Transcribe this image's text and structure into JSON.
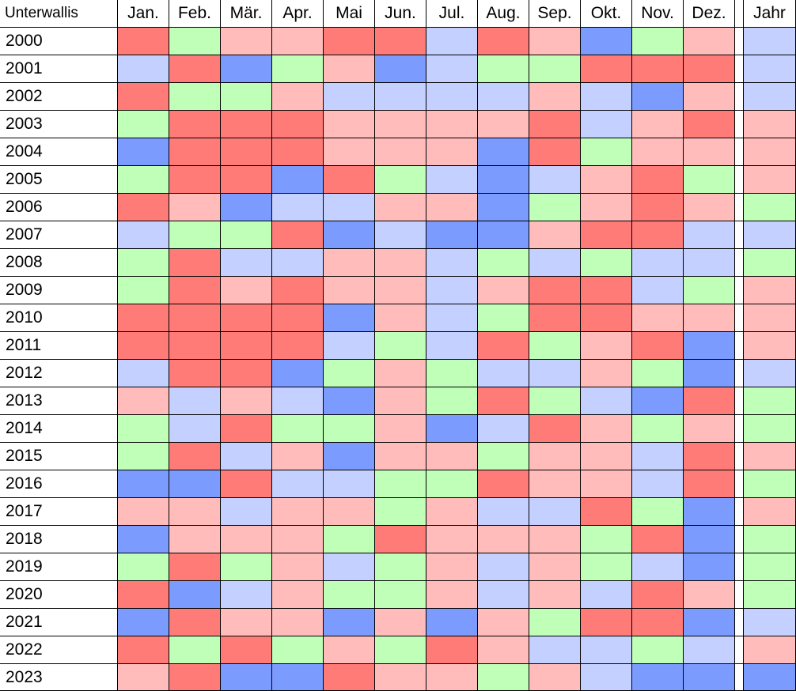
{
  "chart_data": {
    "type": "heatmap",
    "title": "Unterwallis",
    "columns": [
      "Jan.",
      "Feb.",
      "Mär.",
      "Apr.",
      "Mai",
      "Jun.",
      "Jul.",
      "Aug.",
      "Sep.",
      "Okt.",
      "Nov.",
      "Dez."
    ],
    "annual_label": "Jahr",
    "rows": [
      "2000",
      "2001",
      "2002",
      "2003",
      "2004",
      "2005",
      "2006",
      "2007",
      "2008",
      "2009",
      "2010",
      "2011",
      "2012",
      "2013",
      "2014",
      "2015",
      "2016",
      "2017",
      "2018",
      "2019",
      "2020",
      "2021",
      "2022",
      "2023"
    ],
    "category_colors": {
      "DR": "#ff7b78",
      "LR": "#ffbcbb",
      "G": "#bfffb7",
      "LB": "#c4d0ff",
      "DB": "#7b9bff"
    },
    "values": [
      [
        "DR",
        "G",
        "LR",
        "LR",
        "DR",
        "DR",
        "LB",
        "DR",
        "LR",
        "DB",
        "G",
        "LR"
      ],
      [
        "LB",
        "DR",
        "DB",
        "G",
        "LR",
        "DB",
        "LB",
        "G",
        "G",
        "DR",
        "DR",
        "DR"
      ],
      [
        "DR",
        "G",
        "G",
        "LR",
        "LB",
        "LB",
        "LB",
        "LB",
        "LR",
        "LB",
        "DB",
        "LR"
      ],
      [
        "G",
        "DR",
        "DR",
        "DR",
        "LR",
        "LR",
        "LR",
        "LR",
        "DR",
        "LB",
        "LR",
        "DR"
      ],
      [
        "DB",
        "DR",
        "DR",
        "DR",
        "LR",
        "LR",
        "LR",
        "DB",
        "DR",
        "G",
        "LR",
        "LR"
      ],
      [
        "G",
        "DR",
        "DR",
        "DB",
        "DR",
        "G",
        "LB",
        "DB",
        "LB",
        "LR",
        "DR",
        "G"
      ],
      [
        "DR",
        "LR",
        "DB",
        "LB",
        "LB",
        "LR",
        "LR",
        "DB",
        "G",
        "LR",
        "DR",
        "LR"
      ],
      [
        "LB",
        "G",
        "G",
        "DR",
        "DB",
        "LB",
        "DB",
        "DB",
        "LR",
        "DR",
        "DR",
        "LB"
      ],
      [
        "G",
        "DR",
        "LB",
        "LB",
        "LR",
        "LR",
        "LB",
        "G",
        "LB",
        "G",
        "LB",
        "LB"
      ],
      [
        "G",
        "DR",
        "LR",
        "DR",
        "LR",
        "LR",
        "LB",
        "LR",
        "DR",
        "DR",
        "LB",
        "G"
      ],
      [
        "DR",
        "DR",
        "DR",
        "DR",
        "DB",
        "LR",
        "LB",
        "G",
        "DR",
        "DR",
        "LR",
        "LR"
      ],
      [
        "DR",
        "DR",
        "DR",
        "DR",
        "LB",
        "G",
        "LB",
        "DR",
        "G",
        "LR",
        "DR",
        "DB"
      ],
      [
        "LB",
        "DR",
        "DR",
        "DB",
        "G",
        "LR",
        "G",
        "LB",
        "LB",
        "LR",
        "G",
        "DB"
      ],
      [
        "LR",
        "LB",
        "LR",
        "LB",
        "DB",
        "LR",
        "G",
        "DR",
        "G",
        "LB",
        "DB",
        "DR"
      ],
      [
        "G",
        "LB",
        "DR",
        "G",
        "G",
        "LR",
        "DB",
        "LB",
        "DR",
        "LR",
        "G",
        "LR"
      ],
      [
        "G",
        "DR",
        "LB",
        "LR",
        "DB",
        "LR",
        "LR",
        "G",
        "LR",
        "LR",
        "LB",
        "DR"
      ],
      [
        "DB",
        "DB",
        "DR",
        "LB",
        "LB",
        "G",
        "G",
        "DR",
        "LR",
        "LR",
        "LB",
        "DR"
      ],
      [
        "LR",
        "LR",
        "LB",
        "LR",
        "LR",
        "G",
        "LR",
        "LB",
        "LB",
        "DR",
        "G",
        "DB"
      ],
      [
        "DB",
        "LR",
        "LR",
        "LR",
        "G",
        "DR",
        "LR",
        "LR",
        "LR",
        "G",
        "DR",
        "DB"
      ],
      [
        "G",
        "DR",
        "G",
        "LR",
        "LB",
        "G",
        "LR",
        "LB",
        "LR",
        "G",
        "LB",
        "DB"
      ],
      [
        "DR",
        "DB",
        "LB",
        "LR",
        "G",
        "G",
        "LR",
        "LB",
        "LR",
        "LB",
        "DR",
        "LR"
      ],
      [
        "DB",
        "DR",
        "LR",
        "LR",
        "DB",
        "LR",
        "DB",
        "LR",
        "G",
        "DR",
        "DR",
        "DB"
      ],
      [
        "DR",
        "G",
        "DR",
        "G",
        "LR",
        "G",
        "DR",
        "LR",
        "LB",
        "LB",
        "G",
        "LB"
      ],
      [
        "LR",
        "DR",
        "DB",
        "DB",
        "DR",
        "LR",
        "LR",
        "G",
        "LR",
        "LB",
        "DB",
        "DB"
      ]
    ],
    "annual": [
      "LB",
      "LB",
      "LB",
      "LR",
      "LR",
      "LR",
      "G",
      "LB",
      "G",
      "LR",
      "LR",
      "LR",
      "LB",
      "G",
      "G",
      "LR",
      "G",
      "LR",
      "G",
      "G",
      "G",
      "LB",
      "LR",
      "DB"
    ]
  }
}
